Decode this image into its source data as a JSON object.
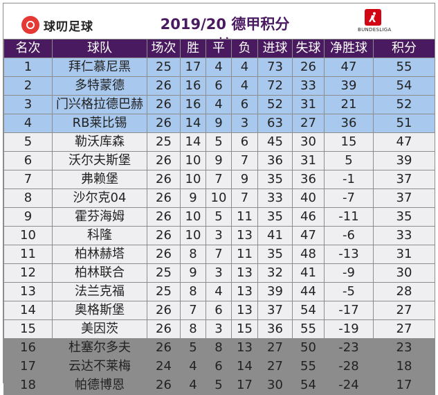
{
  "header": {
    "brand": "球叨足球",
    "title": "2019/20 德甲积分榜",
    "league_logo_text": "BUNDESLIGA",
    "colors": {
      "header_bg": "#4a1a60",
      "top_rows": "#a8c8ee",
      "mid_rows": "#efeff1",
      "bottom_rows": "#8c8c8c",
      "logo_red": "#e53935",
      "bundesliga_red": "#d20515"
    }
  },
  "columns": [
    "名次",
    "球队",
    "场次",
    "胜",
    "平",
    "负",
    "进球",
    "失球",
    "净胜球",
    "积分"
  ],
  "rows": [
    [
      "1",
      "拜仁慕尼黑",
      "25",
      "17",
      "4",
      "4",
      "73",
      "26",
      "47",
      "55"
    ],
    [
      "2",
      "多特蒙德",
      "26",
      "16",
      "6",
      "4",
      "72",
      "33",
      "39",
      "54"
    ],
    [
      "3",
      "门兴格拉德巴赫",
      "26",
      "16",
      "4",
      "6",
      "52",
      "31",
      "21",
      "52"
    ],
    [
      "4",
      "RB莱比锡",
      "26",
      "14",
      "9",
      "3",
      "63",
      "27",
      "36",
      "51"
    ],
    [
      "5",
      "勒沃库森",
      "25",
      "14",
      "5",
      "6",
      "45",
      "30",
      "15",
      "47"
    ],
    [
      "6",
      "沃尔夫斯堡",
      "26",
      "10",
      "9",
      "7",
      "36",
      "31",
      "5",
      "39"
    ],
    [
      "7",
      "弗赖堡",
      "26",
      "10",
      "7",
      "9",
      "35",
      "36",
      "-1",
      "37"
    ],
    [
      "8",
      "沙尔克04",
      "26",
      "9",
      "10",
      "7",
      "33",
      "40",
      "-7",
      "37"
    ],
    [
      "9",
      "霍芬海姆",
      "26",
      "10",
      "5",
      "11",
      "35",
      "46",
      "-11",
      "35"
    ],
    [
      "10",
      "科隆",
      "26",
      "10",
      "3",
      "13",
      "41",
      "47",
      "-6",
      "33"
    ],
    [
      "11",
      "柏林赫塔",
      "26",
      "8",
      "7",
      "11",
      "35",
      "48",
      "-13",
      "31"
    ],
    [
      "12",
      "柏林联合",
      "25",
      "9",
      "3",
      "13",
      "32",
      "41",
      "-9",
      "30"
    ],
    [
      "13",
      "法兰克福",
      "25",
      "8",
      "4",
      "13",
      "39",
      "44",
      "-5",
      "28"
    ],
    [
      "14",
      "奥格斯堡",
      "26",
      "7",
      "6",
      "13",
      "37",
      "54",
      "-17",
      "27"
    ],
    [
      "15",
      "美因茨",
      "26",
      "8",
      "3",
      "15",
      "36",
      "55",
      "-19",
      "27"
    ],
    [
      "16",
      "杜塞尔多夫",
      "26",
      "5",
      "8",
      "13",
      "27",
      "50",
      "-23",
      "23"
    ],
    [
      "17",
      "云达不莱梅",
      "24",
      "4",
      "6",
      "14",
      "27",
      "55",
      "-28",
      "18"
    ],
    [
      "18",
      "帕德博恩",
      "26",
      "4",
      "5",
      "17",
      "30",
      "54",
      "-24",
      "17"
    ]
  ],
  "row_groups": [
    "top",
    "top",
    "top",
    "top",
    "mid",
    "mid",
    "mid",
    "mid",
    "mid",
    "mid",
    "mid",
    "mid",
    "mid",
    "mid",
    "mid",
    "low",
    "low",
    "low"
  ]
}
